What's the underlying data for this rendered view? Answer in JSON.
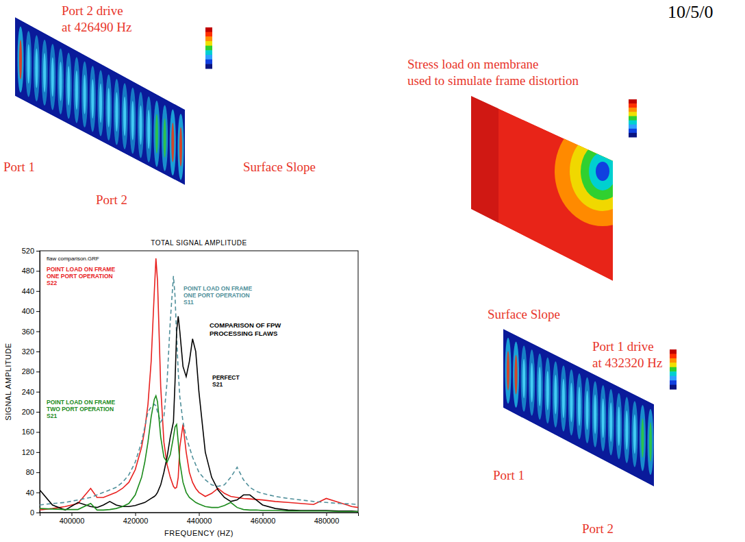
{
  "slide": {
    "date": "10/5/0",
    "panels": [
      {
        "caption": "Port 2 drive\nat 426490 Hz",
        "labels": [
          "Port 1",
          "Surface Slope",
          "Port 2"
        ]
      },
      {
        "caption": "Stress load on membrane\nused to simulate frame distortion",
        "labels": []
      },
      {
        "caption": "Port 1 drive\nat 432320 Hz",
        "labels": [
          "Surface Slope",
          "Port 1",
          "Port 2"
        ]
      }
    ]
  },
  "chart_data": {
    "type": "line",
    "title": "TOTAL SIGNAL AMPLITUDE",
    "x_label": "FREQUENCY (HZ)",
    "y_label": "SIGNAL AMPLITUDE",
    "annotations": [
      "flaw comparison.GRF",
      "COMPARISON OF FPW\nPROCESSING FLAWS"
    ],
    "x": [
      390000,
      394000,
      398000,
      402000,
      406000,
      408000,
      410000,
      412000,
      414000,
      416000,
      418000,
      420000,
      422000,
      423000,
      424000,
      425000,
      426000,
      426500,
      427000,
      428000,
      429000,
      430000,
      431000,
      432000,
      432500,
      433000,
      433500,
      434000,
      435000,
      436000,
      437000,
      438000,
      439000,
      440000,
      442000,
      444000,
      446000,
      448000,
      450000,
      452000,
      454000,
      456000,
      458000,
      460000,
      464000,
      468000,
      472000,
      476000,
      480000,
      484000,
      488000,
      490000
    ],
    "series": [
      {
        "name": "POINT LOAD ON FRAME\nONE PORT OPERATION\nS22",
        "color": "#e8201e",
        "line_style": "solid",
        "values": [
          5,
          8,
          12,
          18,
          48,
          30,
          30,
          35,
          40,
          48,
          60,
          85,
          130,
          165,
          215,
          300,
          440,
          505,
          460,
          250,
          140,
          95,
          70,
          52,
          48,
          50,
          70,
          130,
          175,
          120,
          80,
          60,
          48,
          40,
          32,
          38,
          48,
          38,
          32,
          30,
          28,
          27,
          26,
          25,
          22,
          20,
          18,
          16,
          28,
          20,
          12,
          10
        ]
      },
      {
        "name": "POINT LOAD ON FRAME\nONE PORT OPERATION\nS11",
        "color": "#4f8f9a",
        "line_style": "dashed",
        "values": [
          15,
          18,
          20,
          25,
          30,
          35,
          40,
          45,
          50,
          60,
          75,
          100,
          140,
          170,
          200,
          210,
          215,
          212,
          200,
          180,
          190,
          260,
          380,
          470,
          430,
          350,
          280,
          230,
          180,
          150,
          130,
          110,
          95,
          80,
          65,
          55,
          52,
          55,
          70,
          90,
          65,
          50,
          42,
          38,
          32,
          28,
          25,
          22,
          20,
          18,
          17,
          16
        ]
      },
      {
        "name": "PERFECT\nS21",
        "color": "#000000",
        "line_style": "solid",
        "values": [
          45,
          15,
          5,
          20,
          12,
          10,
          15,
          22,
          15,
          12,
          12,
          14,
          18,
          20,
          24,
          28,
          32,
          35,
          40,
          55,
          80,
          110,
          150,
          180,
          260,
          360,
          390,
          360,
          290,
          270,
          300,
          345,
          320,
          240,
          120,
          70,
          45,
          30,
          22,
          25,
          35,
          35,
          25,
          15,
          8,
          5,
          4,
          4,
          4,
          3,
          3,
          2
        ]
      },
      {
        "name": "POINT LOAD ON FRAME\nTWO PORT OPERATION\nS21",
        "color": "#1a8a1a",
        "line_style": "solid",
        "values": [
          8,
          7,
          6,
          6,
          18,
          5,
          5,
          6,
          8,
          12,
          18,
          35,
          70,
          100,
          140,
          190,
          225,
          232,
          220,
          150,
          110,
          100,
          115,
          150,
          170,
          175,
          140,
          100,
          60,
          40,
          30,
          25,
          20,
          17,
          12,
          10,
          10,
          14,
          20,
          10,
          6,
          5,
          5,
          4,
          4,
          3,
          3,
          3,
          3,
          2,
          2,
          2
        ]
      }
    ],
    "xlim": [
      390000,
      490000
    ],
    "xticks": [
      400000,
      420000,
      440000,
      460000,
      480000
    ],
    "ylim": [
      0,
      520
    ],
    "yticks": [
      0,
      40,
      80,
      120,
      160,
      200,
      240,
      280,
      320,
      360,
      400,
      440,
      480,
      520
    ],
    "grid": false
  }
}
